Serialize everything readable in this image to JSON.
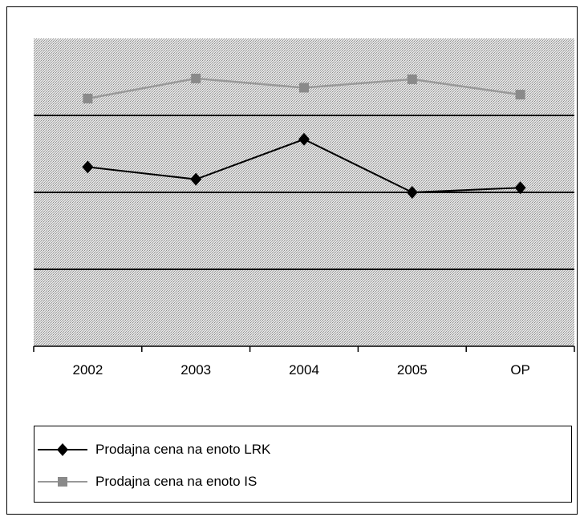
{
  "chart_data": {
    "type": "line",
    "categories": [
      "2002",
      "2003",
      "2004",
      "2005",
      "OP"
    ],
    "series": [
      {
        "name": "Prodajna cena na enoto LRK",
        "values": [
          2.33,
          2.17,
          2.69,
          2.0,
          2.06
        ],
        "color": "#000000",
        "marker": "diamond"
      },
      {
        "name": "Prodajna cena na enoto IS",
        "values": [
          3.22,
          3.48,
          3.36,
          3.47,
          3.27
        ],
        "color": "#999999",
        "marker": "square"
      }
    ],
    "ylim": [
      0,
      4
    ],
    "gridlines_y": [
      1,
      2,
      3
    ],
    "y_tick_labels": "none",
    "grid": true,
    "plot_background": "stippled gray",
    "legend_position": "bottom"
  }
}
